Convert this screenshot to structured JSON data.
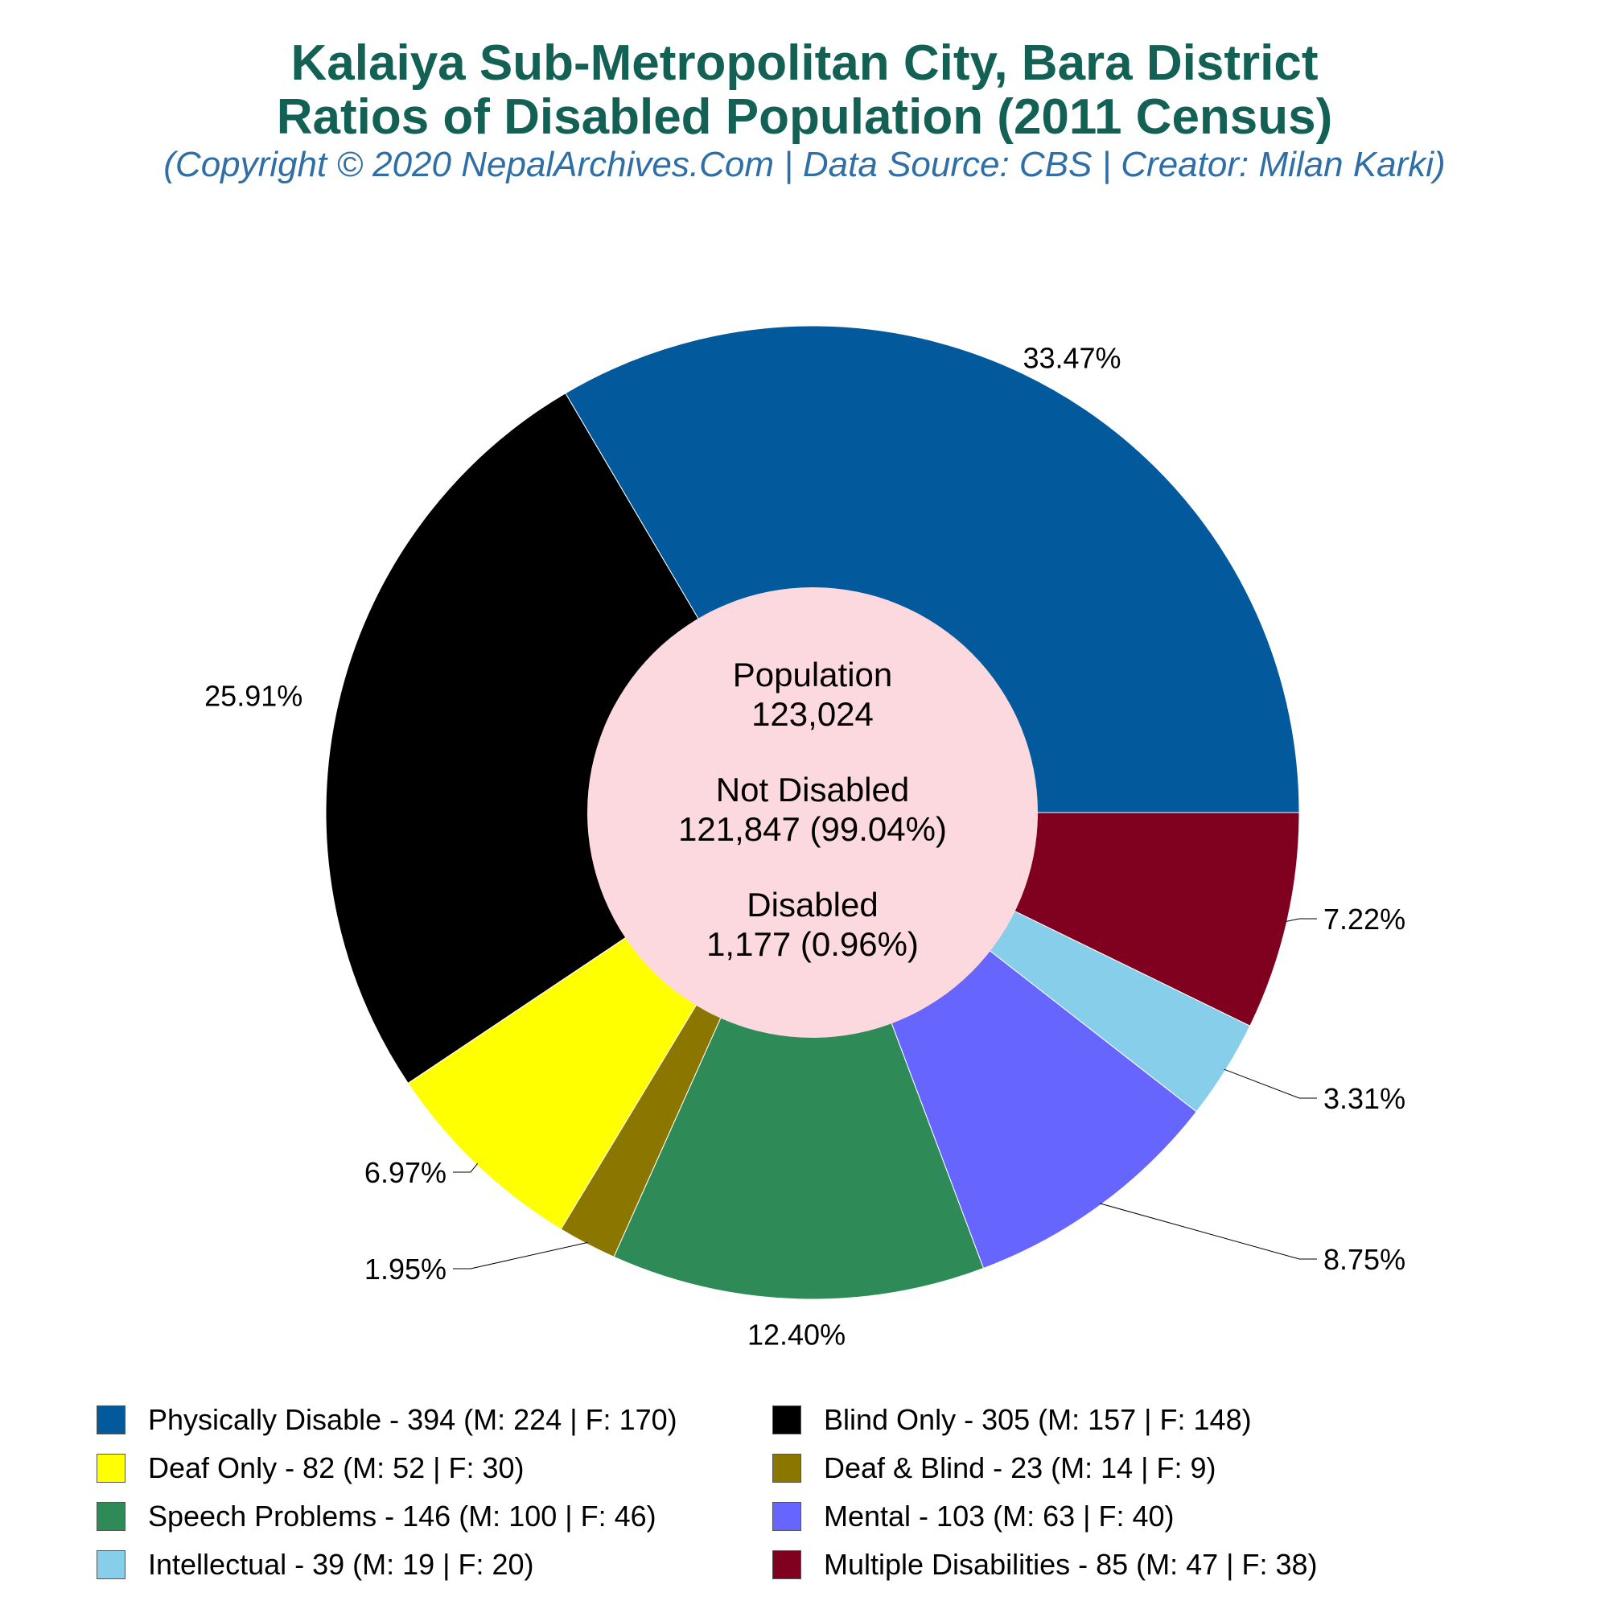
{
  "header": {
    "title_line1": "Kalaiya Sub-Metropolitan City, Bara District",
    "title_line2": "Ratios of Disabled Population (2011 Census)",
    "subtitle": "(Copyright © 2020 NepalArchives.Com | Data Source: CBS | Creator: Milan Karki)"
  },
  "center": {
    "population_label": "Population",
    "population_value": "123,024",
    "not_disabled_label": "Not Disabled",
    "not_disabled_value": "121,847 (99.04%)",
    "disabled_label": "Disabled",
    "disabled_value": "1,177 (0.96%)",
    "color": "#fcd9de"
  },
  "chart_data": {
    "type": "pie",
    "style": "donut",
    "start_angle_deg": 0,
    "direction": "counterclockwise",
    "legend_position": "bottom",
    "categories": [
      "Physically Disable",
      "Blind Only",
      "Deaf Only",
      "Deaf & Blind",
      "Speech Problems",
      "Mental",
      "Intellectual",
      "Multiple Disabilities"
    ],
    "values": [
      394,
      305,
      82,
      23,
      146,
      103,
      39,
      85
    ],
    "male": [
      224,
      157,
      52,
      14,
      100,
      63,
      19,
      47
    ],
    "female": [
      170,
      148,
      30,
      9,
      46,
      40,
      20,
      38
    ],
    "percent_labels": [
      "33.47%",
      "25.91%",
      "6.97%",
      "1.95%",
      "12.40%",
      "8.75%",
      "3.31%",
      "7.22%"
    ],
    "colors": [
      "#02599c",
      "#000000",
      "#ffff00",
      "#8b7700",
      "#2e8b57",
      "#6666ff",
      "#87ceeb",
      "#800020"
    ],
    "legend_labels": [
      "Physically Disable - 394 (M: 224 | F: 170)",
      "Blind Only - 305 (M: 157 | F: 148)",
      "Deaf Only - 82 (M: 52 | F: 30)",
      "Deaf & Blind - 23 (M: 14 | F: 9)",
      "Speech Problems - 146 (M: 100 | F: 46)",
      "Mental - 103 (M: 63 | F: 40)",
      "Intellectual - 39 (M: 19 | F: 20)",
      "Multiple Disabilities - 85 (M: 47 | F: 38)"
    ]
  }
}
